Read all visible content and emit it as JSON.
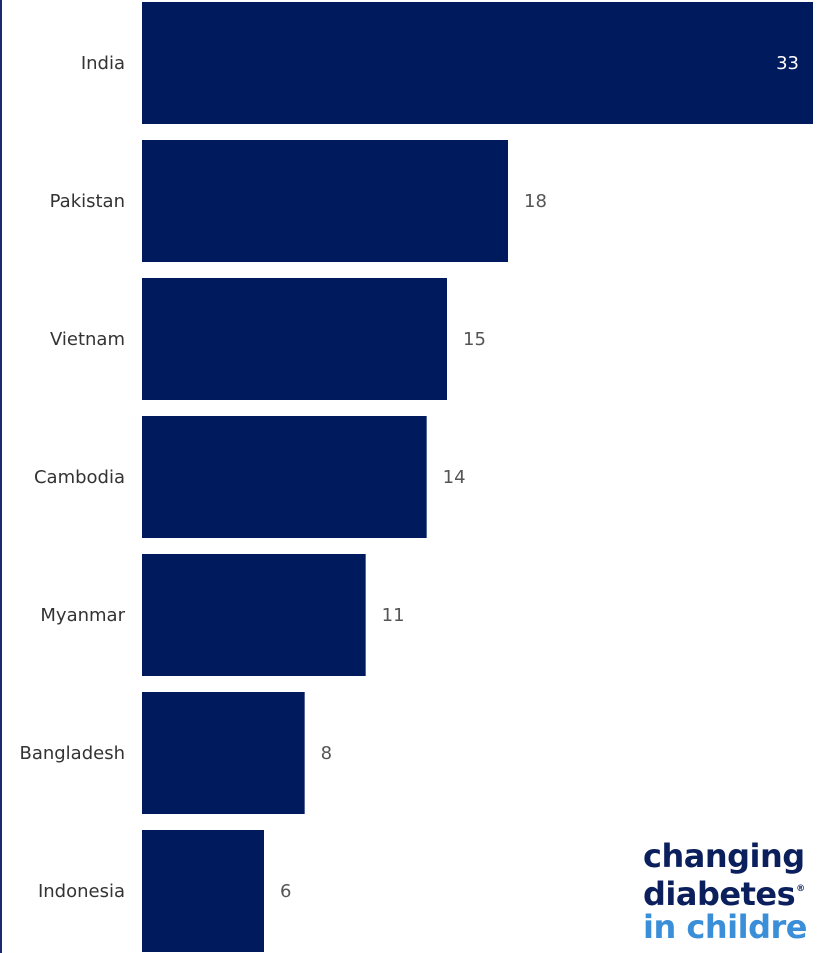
{
  "chart_data": {
    "type": "bar",
    "orientation": "horizontal",
    "categories": [
      "India",
      "Pakistan",
      "Vietnam",
      "Cambodia",
      "Myanmar",
      "Bangladesh",
      "Indonesia"
    ],
    "values": [
      33,
      18,
      15,
      14,
      11,
      8,
      6
    ],
    "xlim": [
      0,
      33
    ],
    "grid": false,
    "colors": {
      "bar": "#001a5e",
      "value_label_inside": "#ffffff",
      "value_label_outside": "#555555"
    }
  },
  "logo": {
    "line1": "changing",
    "line2": "diabetes",
    "registered": "®",
    "line3": "in childre"
  }
}
